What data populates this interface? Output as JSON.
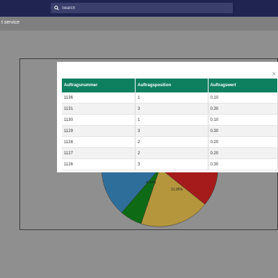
{
  "search": {
    "placeholder": "Search"
  },
  "subheader": {
    "title": "t service"
  },
  "chart": {
    "labels": [
      "4.05%",
      "21.05%"
    ],
    "colors": {
      "blue": "#2e6e9a",
      "green": "#0f6a16",
      "gold": "#b5963c",
      "red": "#a51b1b"
    }
  },
  "modal": {
    "close_label": "×",
    "headers": [
      "Auftragsnummer",
      "Auftragsposition",
      "Auftragswert"
    ],
    "rows": [
      [
        "1136",
        "1",
        "0.10"
      ],
      [
        "1131",
        "3",
        "0.30"
      ],
      [
        "1130",
        "1",
        "0.10"
      ],
      [
        "1129",
        "3",
        "0.30"
      ],
      [
        "1128",
        "2",
        "0.20"
      ],
      [
        "1127",
        "2",
        "0.20"
      ],
      [
        "1126",
        "3",
        "0.30"
      ]
    ]
  }
}
